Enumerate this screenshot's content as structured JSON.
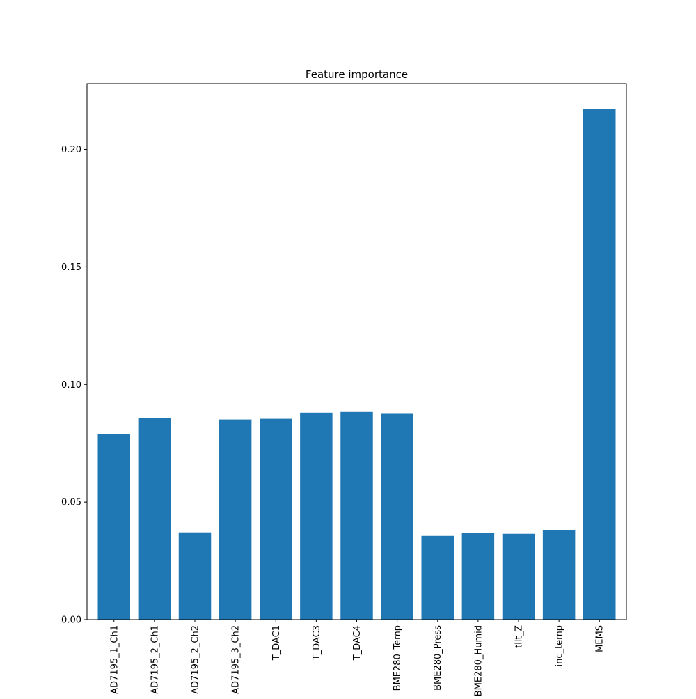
{
  "chart_data": {
    "type": "bar",
    "title": "Feature importance",
    "xlabel": "",
    "ylabel": "",
    "categories": [
      "AD7195_1_Ch1",
      "AD7195_2_Ch1",
      "AD7195_2_Ch2",
      "AD7195_3_Ch2",
      "T_DAC1",
      "T_DAC3",
      "T_DAC4",
      "BME280_Temp",
      "BME280_Press",
      "BME280_Humid",
      "tilt_Z",
      "inc_temp",
      "MEMS"
    ],
    "values": [
      0.0788,
      0.0857,
      0.0371,
      0.0851,
      0.0854,
      0.088,
      0.0883,
      0.0878,
      0.0356,
      0.037,
      0.0365,
      0.0382,
      0.2171
    ],
    "ylim": [
      0,
      0.228
    ],
    "yticks": [
      0.0,
      0.05,
      0.1,
      0.15,
      0.2
    ],
    "ytick_labels": [
      "0.00",
      "0.05",
      "0.10",
      "0.15",
      "0.20"
    ],
    "bar_color": "#1f77b4",
    "grid": false,
    "legend": "none"
  }
}
